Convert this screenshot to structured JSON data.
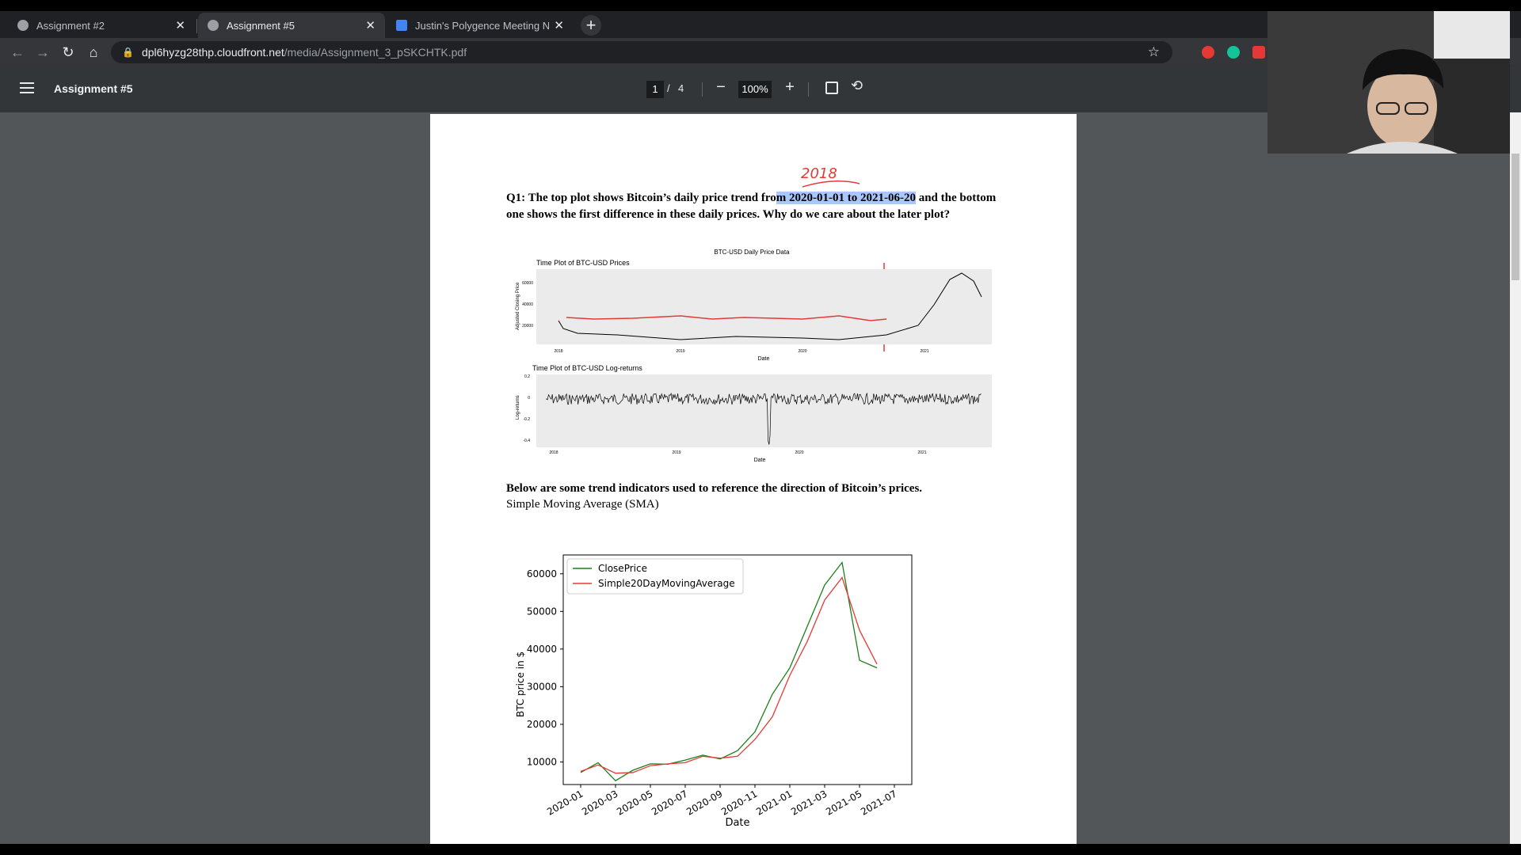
{
  "browser": {
    "tabs": [
      {
        "title": "Assignment #2",
        "active": false
      },
      {
        "title": "Assignment #5",
        "active": true
      },
      {
        "title": "Justin's Polygence Meeting Notes",
        "active": false
      }
    ],
    "url_host": "dpl6hyzg28thp.cloudfront.net",
    "url_path": "/media/Assignment_3_pSKCHTK.pdf"
  },
  "viewer": {
    "title": "Assignment #5",
    "page_current": "1",
    "page_total": "4",
    "zoom": "100%"
  },
  "doc": {
    "annotation": "2018",
    "q1_pre": "Q1: The top plot shows Bitcoin’s daily price trend fro",
    "q1_highlight": "m 2020-01-01 to 2021-06-20",
    "q1_post": " and the bottom one shows the first difference in these daily prices. Why do we care about the later plot?",
    "section_heading": "Below are some trend indicators used to reference the direction of  Bitcoin’s prices.",
    "section_sub": "Simple Moving Average (SMA)"
  },
  "chart_data": [
    {
      "type": "line",
      "title": "BTC-USD Daily Price Data",
      "subtitle": "Time Plot of BTC-USD Prices",
      "xlabel": "Date",
      "ylabel": "Adjusted Closing Price",
      "x_ticks": [
        "2018",
        "2019",
        "2020",
        "2021"
      ],
      "y_ticks": [
        20000,
        40000,
        60000
      ],
      "series": [
        {
          "x": [
            "2018-01",
            "2018-07",
            "2019-01",
            "2019-07",
            "2020-01",
            "2020-07",
            "2021-01",
            "2021-04",
            "2021-06"
          ],
          "values": [
            14000,
            7000,
            3700,
            10000,
            7200,
            9200,
            30000,
            58000,
            36000
          ]
        }
      ]
    },
    {
      "type": "line",
      "subtitle": "Time Plot of BTC-USD Log-returns",
      "xlabel": "Date",
      "ylabel": "Log-returns",
      "x_ticks": [
        "2018",
        "2019",
        "2020",
        "2021"
      ],
      "y_ticks": [
        0.2,
        0.0,
        -0.2,
        -0.4
      ],
      "series": [
        {
          "x": [
            "2018",
            "2019",
            "2020-03",
            "2021",
            "2021-06"
          ],
          "values": [
            0.0,
            0.0,
            -0.46,
            0.0,
            0.0
          ]
        }
      ]
    },
    {
      "type": "line",
      "xlabel": "Date",
      "ylabel": "BTC price in $",
      "ylim": [
        4000,
        65000
      ],
      "y_ticks": [
        10000,
        20000,
        30000,
        40000,
        50000,
        60000
      ],
      "categories": [
        "2020-01",
        "2020-03",
        "2020-05",
        "2020-07",
        "2020-09",
        "2020-11",
        "2021-01",
        "2021-03",
        "2021-05",
        "2021-07"
      ],
      "legend": "top-left",
      "series": [
        {
          "name": "ClosePrice",
          "color": "#1a7f1a",
          "x": [
            "2020-01",
            "2020-02",
            "2020-03",
            "2020-04",
            "2020-05",
            "2020-06",
            "2020-07",
            "2020-08",
            "2020-09",
            "2020-10",
            "2020-11",
            "2020-12",
            "2021-01",
            "2021-02",
            "2021-03",
            "2021-04",
            "2021-05",
            "2021-06"
          ],
          "values": [
            7200,
            9800,
            5000,
            7800,
            9500,
            9400,
            10500,
            11800,
            10800,
            13000,
            18000,
            28000,
            35000,
            46000,
            57000,
            63000,
            37000,
            35000
          ]
        },
        {
          "name": "Simple20DayMovingAverage",
          "color": "#e53935",
          "x": [
            "2020-01",
            "2020-02",
            "2020-03",
            "2020-04",
            "2020-05",
            "2020-06",
            "2020-07",
            "2020-08",
            "2020-09",
            "2020-10",
            "2020-11",
            "2020-12",
            "2021-01",
            "2021-02",
            "2021-03",
            "2021-04",
            "2021-05",
            "2021-06"
          ],
          "values": [
            7500,
            9200,
            7000,
            7200,
            9000,
            9500,
            9800,
            11500,
            11000,
            11500,
            16000,
            22000,
            33000,
            42000,
            53000,
            59000,
            45000,
            36000
          ]
        }
      ]
    }
  ]
}
